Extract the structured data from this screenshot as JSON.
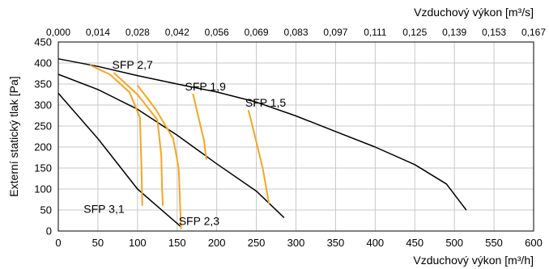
{
  "chart_data": {
    "type": "line",
    "xlabel": "Vzduchový výkon [m³/h]",
    "x2label": "Vzduchový výkon [m³/s]",
    "ylabel": "Externí statický tlak [Pa]",
    "xlim": [
      0,
      600
    ],
    "ylim": [
      0,
      450
    ],
    "x_ticks": [
      0,
      50,
      100,
      150,
      200,
      250,
      300,
      350,
      400,
      450,
      500,
      550,
      600
    ],
    "y_ticks": [
      0,
      50,
      100,
      150,
      200,
      250,
      300,
      350,
      400,
      450
    ],
    "x2_tick_labels": [
      "0,000",
      "0,014",
      "0,028",
      "0,042",
      "0,056",
      "0,069",
      "0,083",
      "0,097",
      "0,111",
      "0,125",
      "0,139",
      "0,153",
      "0,167"
    ],
    "grid": true,
    "curve_color": "#000000",
    "sfp_color": "#f5a623",
    "series": [
      {
        "points": [
          [
            0,
            410
          ],
          [
            50,
            392
          ],
          [
            100,
            370
          ],
          [
            150,
            350
          ],
          [
            200,
            331
          ],
          [
            250,
            307
          ],
          [
            300,
            274
          ],
          [
            350,
            237
          ],
          [
            400,
            200
          ],
          [
            450,
            158
          ],
          [
            490,
            112
          ],
          [
            515,
            50
          ]
        ]
      },
      {
        "points": [
          [
            0,
            373
          ],
          [
            50,
            337
          ],
          [
            100,
            290
          ],
          [
            150,
            228
          ],
          [
            200,
            160
          ],
          [
            250,
            95
          ],
          [
            285,
            32
          ]
        ]
      },
      {
        "points": [
          [
            0,
            328
          ],
          [
            50,
            220
          ],
          [
            100,
            100
          ],
          [
            155,
            10
          ]
        ]
      }
    ],
    "sfp_lines": [
      {
        "label": "SFP 2,7",
        "points": [
          [
            40,
            395
          ],
          [
            65,
            373
          ],
          [
            90,
            330
          ],
          [
            103,
            270
          ],
          [
            105,
            155
          ],
          [
            106,
            60
          ]
        ]
      },
      {
        "label": "SFP 2,3",
        "points": [
          [
            70,
            377
          ],
          [
            100,
            325
          ],
          [
            125,
            265
          ],
          [
            130,
            180
          ],
          [
            131,
            100
          ],
          [
            132,
            60
          ]
        ]
      },
      {
        "label": "SFP 3,1",
        "points": [
          [
            100,
            347
          ],
          [
            123,
            290
          ],
          [
            145,
            220
          ],
          [
            152,
            150
          ],
          [
            155,
            5
          ]
        ]
      },
      {
        "label": "SFP 1,9",
        "points": [
          [
            170,
            327
          ],
          [
            177,
            270
          ],
          [
            184,
            215
          ],
          [
            187,
            170
          ]
        ]
      },
      {
        "label": "SFP 1,5",
        "points": [
          [
            240,
            288
          ],
          [
            249,
            220
          ],
          [
            258,
            150
          ],
          [
            266,
            65
          ]
        ]
      }
    ],
    "annotations": [
      {
        "text": "SFP 2,7",
        "x": 68,
        "y": 387
      },
      {
        "text": "SFP 1,9",
        "x": 160,
        "y": 335
      },
      {
        "text": "SFP 1,5",
        "x": 236,
        "y": 296
      },
      {
        "text": "SFP 3,1",
        "x": 32,
        "y": 43
      },
      {
        "text": "SFP 2,3",
        "x": 152,
        "y": 14
      }
    ]
  }
}
